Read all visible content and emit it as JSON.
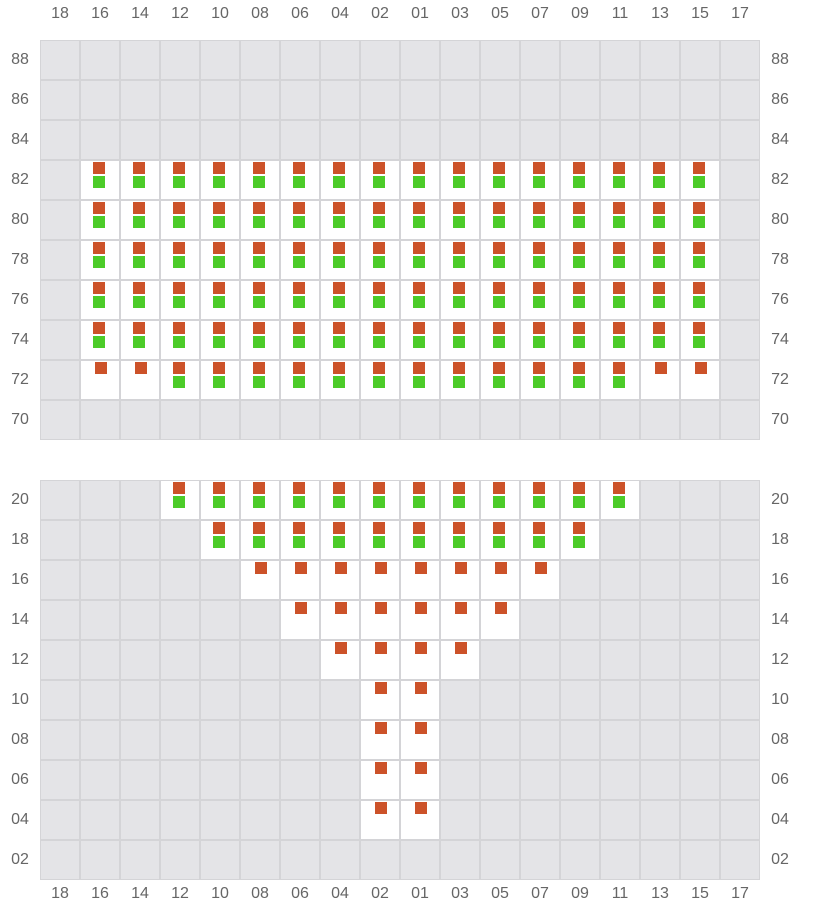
{
  "columns": [
    "18",
    "16",
    "14",
    "12",
    "10",
    "08",
    "06",
    "04",
    "02",
    "01",
    "03",
    "05",
    "07",
    "09",
    "11",
    "13",
    "15",
    "17"
  ],
  "colors": {
    "closed": "#e4e4e7",
    "open": "#ffffff",
    "grid_line": "#d4d4d7",
    "red": "#cc5229",
    "green": "#4ccc29",
    "label": "#666666"
  },
  "legend_codes": {
    "rg": "red+green markers",
    "r": "red marker only",
    "o": "open, empty",
    "x": "closed (gray)"
  },
  "grids": [
    {
      "rows": [
        {
          "label": "88",
          "cells": [
            "x",
            "x",
            "x",
            "x",
            "x",
            "x",
            "x",
            "x",
            "x",
            "x",
            "x",
            "x",
            "x",
            "x",
            "x",
            "x",
            "x",
            "x"
          ]
        },
        {
          "label": "86",
          "cells": [
            "x",
            "x",
            "x",
            "x",
            "x",
            "x",
            "x",
            "x",
            "x",
            "x",
            "x",
            "x",
            "x",
            "x",
            "x",
            "x",
            "x",
            "x"
          ]
        },
        {
          "label": "84",
          "cells": [
            "x",
            "x",
            "x",
            "x",
            "x",
            "x",
            "x",
            "x",
            "x",
            "x",
            "x",
            "x",
            "x",
            "x",
            "x",
            "x",
            "x",
            "x"
          ]
        },
        {
          "label": "82",
          "cells": [
            "x",
            "rg",
            "rg",
            "rg",
            "rg",
            "rg",
            "rg",
            "rg",
            "rg",
            "rg",
            "rg",
            "rg",
            "rg",
            "rg",
            "rg",
            "rg",
            "rg",
            "x"
          ]
        },
        {
          "label": "80",
          "cells": [
            "x",
            "rg",
            "rg",
            "rg",
            "rg",
            "rg",
            "rg",
            "rg",
            "rg",
            "rg",
            "rg",
            "rg",
            "rg",
            "rg",
            "rg",
            "rg",
            "rg",
            "x"
          ]
        },
        {
          "label": "78",
          "cells": [
            "x",
            "rg",
            "rg",
            "rg",
            "rg",
            "rg",
            "rg",
            "rg",
            "rg",
            "rg",
            "rg",
            "rg",
            "rg",
            "rg",
            "rg",
            "rg",
            "rg",
            "x"
          ]
        },
        {
          "label": "76",
          "cells": [
            "x",
            "rg",
            "rg",
            "rg",
            "rg",
            "rg",
            "rg",
            "rg",
            "rg",
            "rg",
            "rg",
            "rg",
            "rg",
            "rg",
            "rg",
            "rg",
            "rg",
            "x"
          ]
        },
        {
          "label": "74",
          "cells": [
            "x",
            "rg",
            "rg",
            "rg",
            "rg",
            "rg",
            "rg",
            "rg",
            "rg",
            "rg",
            "rg",
            "rg",
            "rg",
            "rg",
            "rg",
            "rg",
            "rg",
            "x"
          ]
        },
        {
          "label": "72",
          "cells": [
            "x",
            "r",
            "r",
            "rg",
            "rg",
            "rg",
            "rg",
            "rg",
            "rg",
            "rg",
            "rg",
            "rg",
            "rg",
            "rg",
            "rg",
            "r",
            "r",
            "x"
          ]
        },
        {
          "label": "70",
          "cells": [
            "x",
            "x",
            "x",
            "x",
            "x",
            "x",
            "x",
            "x",
            "x",
            "x",
            "x",
            "x",
            "x",
            "x",
            "x",
            "x",
            "x",
            "x"
          ]
        }
      ]
    },
    {
      "rows": [
        {
          "label": "20",
          "cells": [
            "x",
            "x",
            "x",
            "rg",
            "rg",
            "rg",
            "rg",
            "rg",
            "rg",
            "rg",
            "rg",
            "rg",
            "rg",
            "rg",
            "rg",
            "x",
            "x",
            "x"
          ]
        },
        {
          "label": "18",
          "cells": [
            "x",
            "x",
            "x",
            "x",
            "rg",
            "rg",
            "rg",
            "rg",
            "rg",
            "rg",
            "rg",
            "rg",
            "rg",
            "rg",
            "x",
            "x",
            "x",
            "x"
          ]
        },
        {
          "label": "16",
          "cells": [
            "x",
            "x",
            "x",
            "x",
            "x",
            "r",
            "r",
            "r",
            "r",
            "r",
            "r",
            "r",
            "r",
            "x",
            "x",
            "x",
            "x",
            "x"
          ]
        },
        {
          "label": "14",
          "cells": [
            "x",
            "x",
            "x",
            "x",
            "x",
            "x",
            "r",
            "r",
            "r",
            "r",
            "r",
            "r",
            "x",
            "x",
            "x",
            "x",
            "x",
            "x"
          ]
        },
        {
          "label": "12",
          "cells": [
            "x",
            "x",
            "x",
            "x",
            "x",
            "x",
            "x",
            "r",
            "r",
            "r",
            "r",
            "x",
            "x",
            "x",
            "x",
            "x",
            "x",
            "x"
          ]
        },
        {
          "label": "10",
          "cells": [
            "x",
            "x",
            "x",
            "x",
            "x",
            "x",
            "x",
            "x",
            "r",
            "r",
            "x",
            "x",
            "x",
            "x",
            "x",
            "x",
            "x",
            "x"
          ]
        },
        {
          "label": "08",
          "cells": [
            "x",
            "x",
            "x",
            "x",
            "x",
            "x",
            "x",
            "x",
            "r",
            "r",
            "x",
            "x",
            "x",
            "x",
            "x",
            "x",
            "x",
            "x"
          ]
        },
        {
          "label": "06",
          "cells": [
            "x",
            "x",
            "x",
            "x",
            "x",
            "x",
            "x",
            "x",
            "r",
            "r",
            "x",
            "x",
            "x",
            "x",
            "x",
            "x",
            "x",
            "x"
          ]
        },
        {
          "label": "04",
          "cells": [
            "x",
            "x",
            "x",
            "x",
            "x",
            "x",
            "x",
            "x",
            "r",
            "r",
            "x",
            "x",
            "x",
            "x",
            "x",
            "x",
            "x",
            "x"
          ]
        },
        {
          "label": "02",
          "cells": [
            "x",
            "x",
            "x",
            "x",
            "x",
            "x",
            "x",
            "x",
            "x",
            "x",
            "x",
            "x",
            "x",
            "x",
            "x",
            "x",
            "x",
            "x"
          ]
        }
      ]
    }
  ]
}
